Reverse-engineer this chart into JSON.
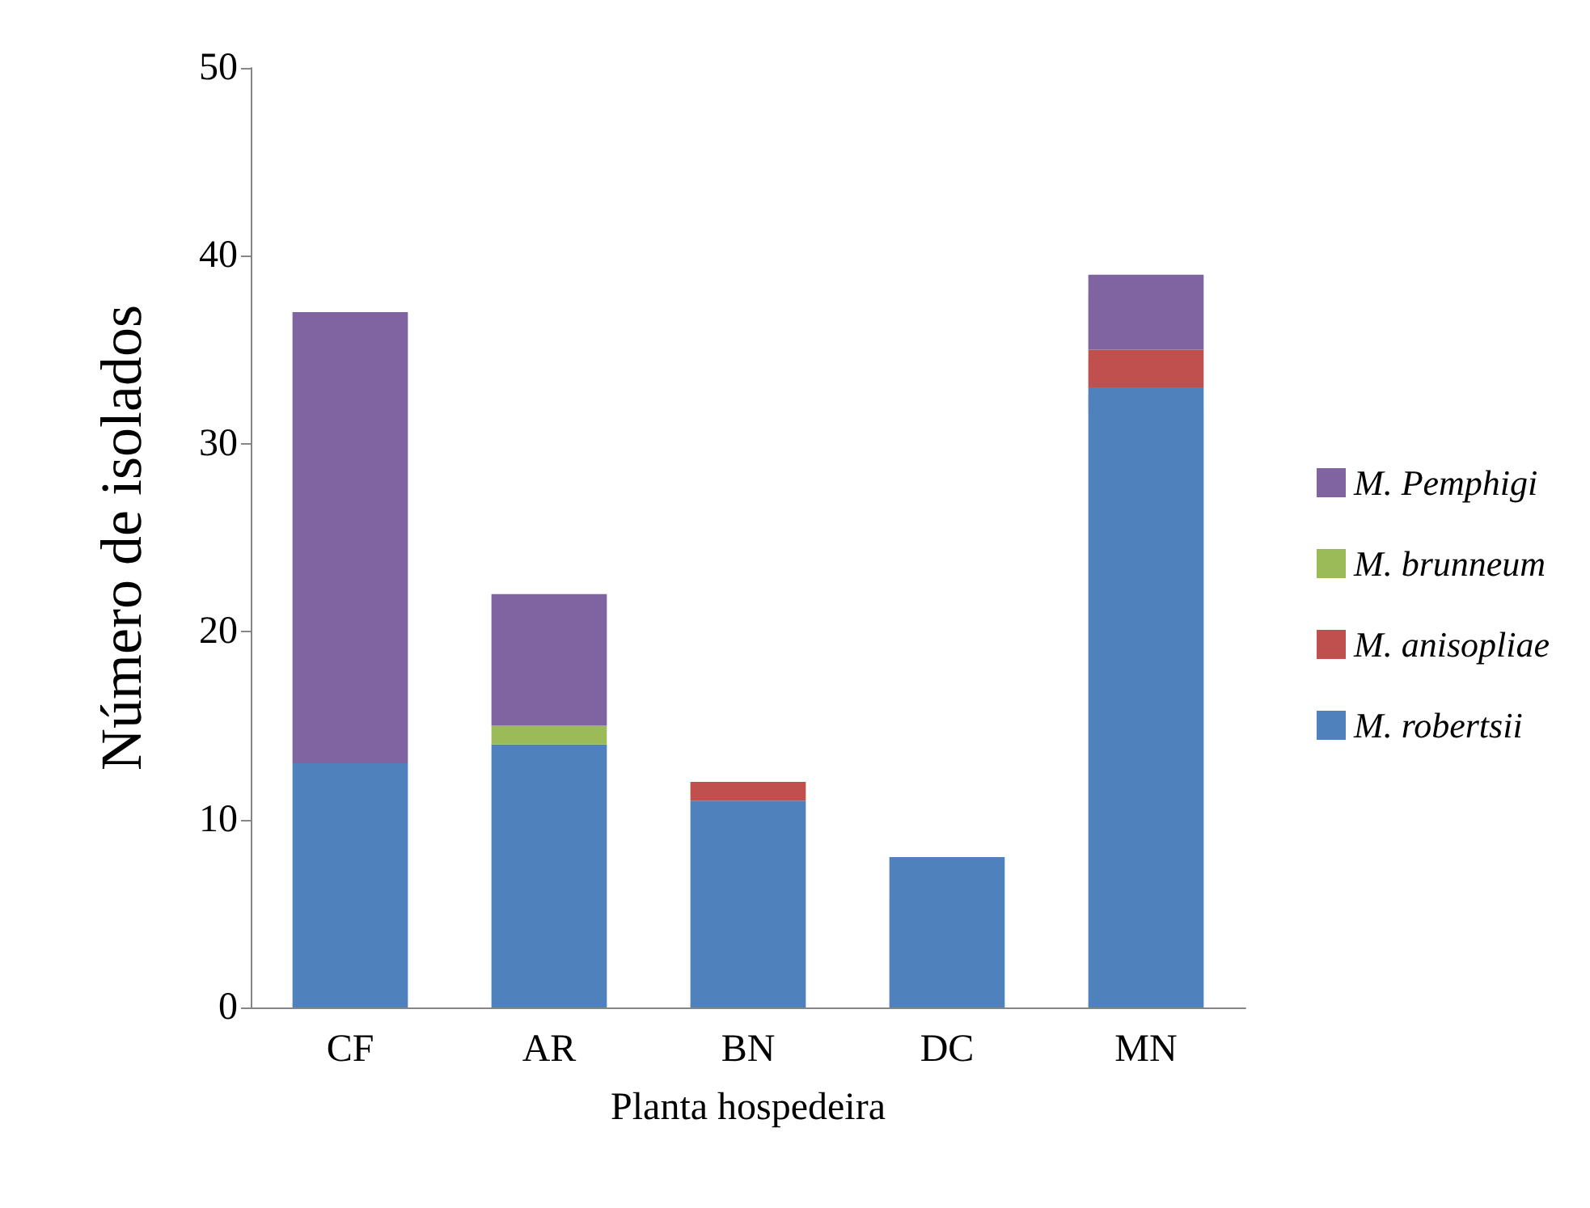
{
  "chart_data": {
    "type": "bar",
    "stacked": true,
    "xlabel": "Planta hospedeira",
    "ylabel": "Número de isolados",
    "categories": [
      "CF",
      "AR",
      "BN",
      "DC",
      "MN"
    ],
    "series": [
      {
        "name": "M. robertsii",
        "color": "#4f81bd",
        "values": [
          13,
          14,
          11,
          8,
          33
        ]
      },
      {
        "name": "M. anisopliae",
        "color": "#c0504d",
        "values": [
          null,
          null,
          1,
          null,
          2
        ]
      },
      {
        "name": "M. brunneum",
        "color": "#9bbb59",
        "values": [
          null,
          1,
          null,
          null,
          null
        ]
      },
      {
        "name": "M. Pemphigi",
        "color": "#8064a2",
        "values": [
          24,
          7,
          null,
          null,
          4
        ]
      }
    ],
    "ylim": [
      0,
      50
    ],
    "yticks": [
      0,
      10,
      20,
      30,
      40,
      50
    ],
    "grid": false,
    "legend": "right"
  }
}
